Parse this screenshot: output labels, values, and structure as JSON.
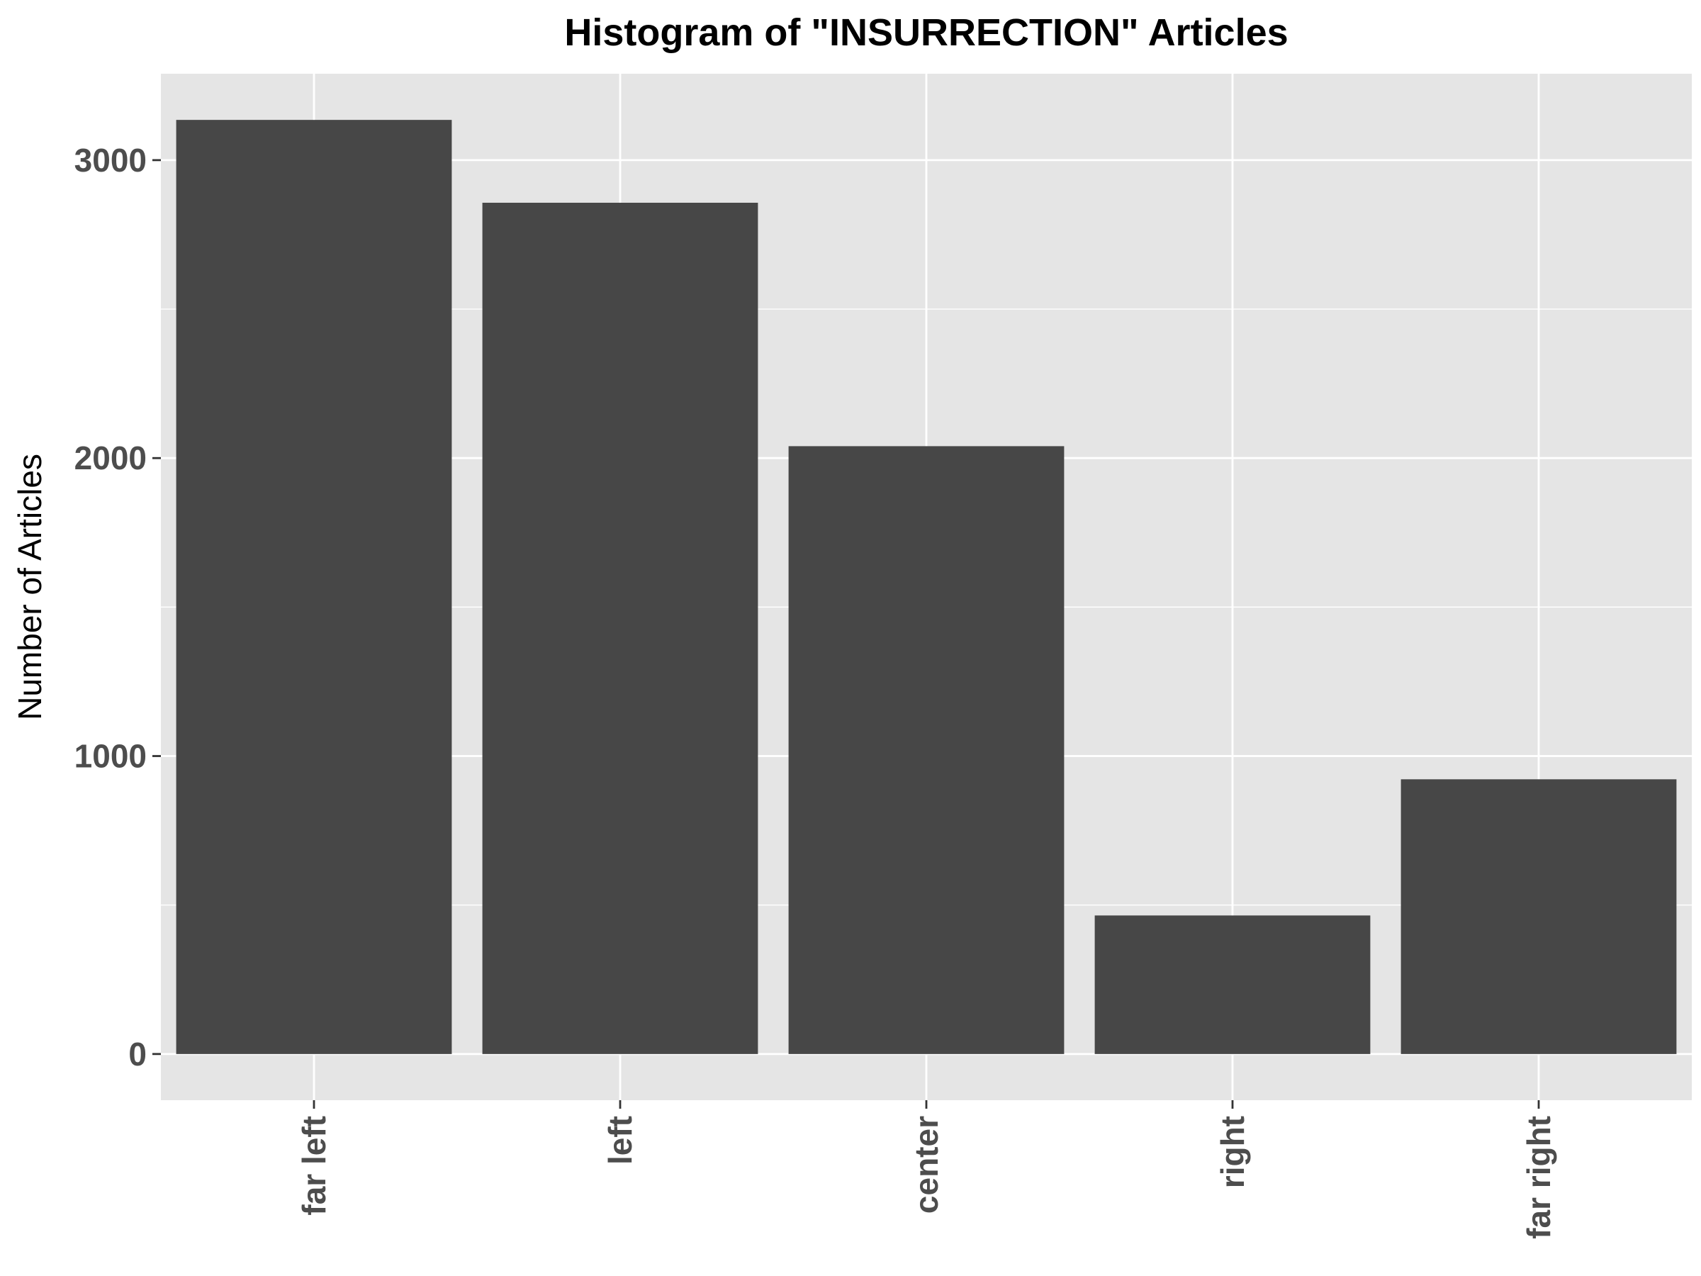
{
  "chart_data": {
    "type": "bar",
    "title": "Histogram of \"INSURRECTION\" Articles",
    "xlabel": "",
    "ylabel": "Number of Articles",
    "categories": [
      "far left",
      "left",
      "center",
      "right",
      "far right"
    ],
    "values": [
      3135,
      2857,
      2040,
      465,
      922
    ],
    "ylim": [
      -155,
      3290
    ],
    "yticks": [
      0,
      1000,
      2000,
      3000
    ],
    "grid": true,
    "legend": "none",
    "colors": {
      "bar": "#474747",
      "panel": "#e5e5e5",
      "grid": "#ffffff",
      "tick_text": "#4d4d4d",
      "axis_title": "#000000"
    }
  }
}
